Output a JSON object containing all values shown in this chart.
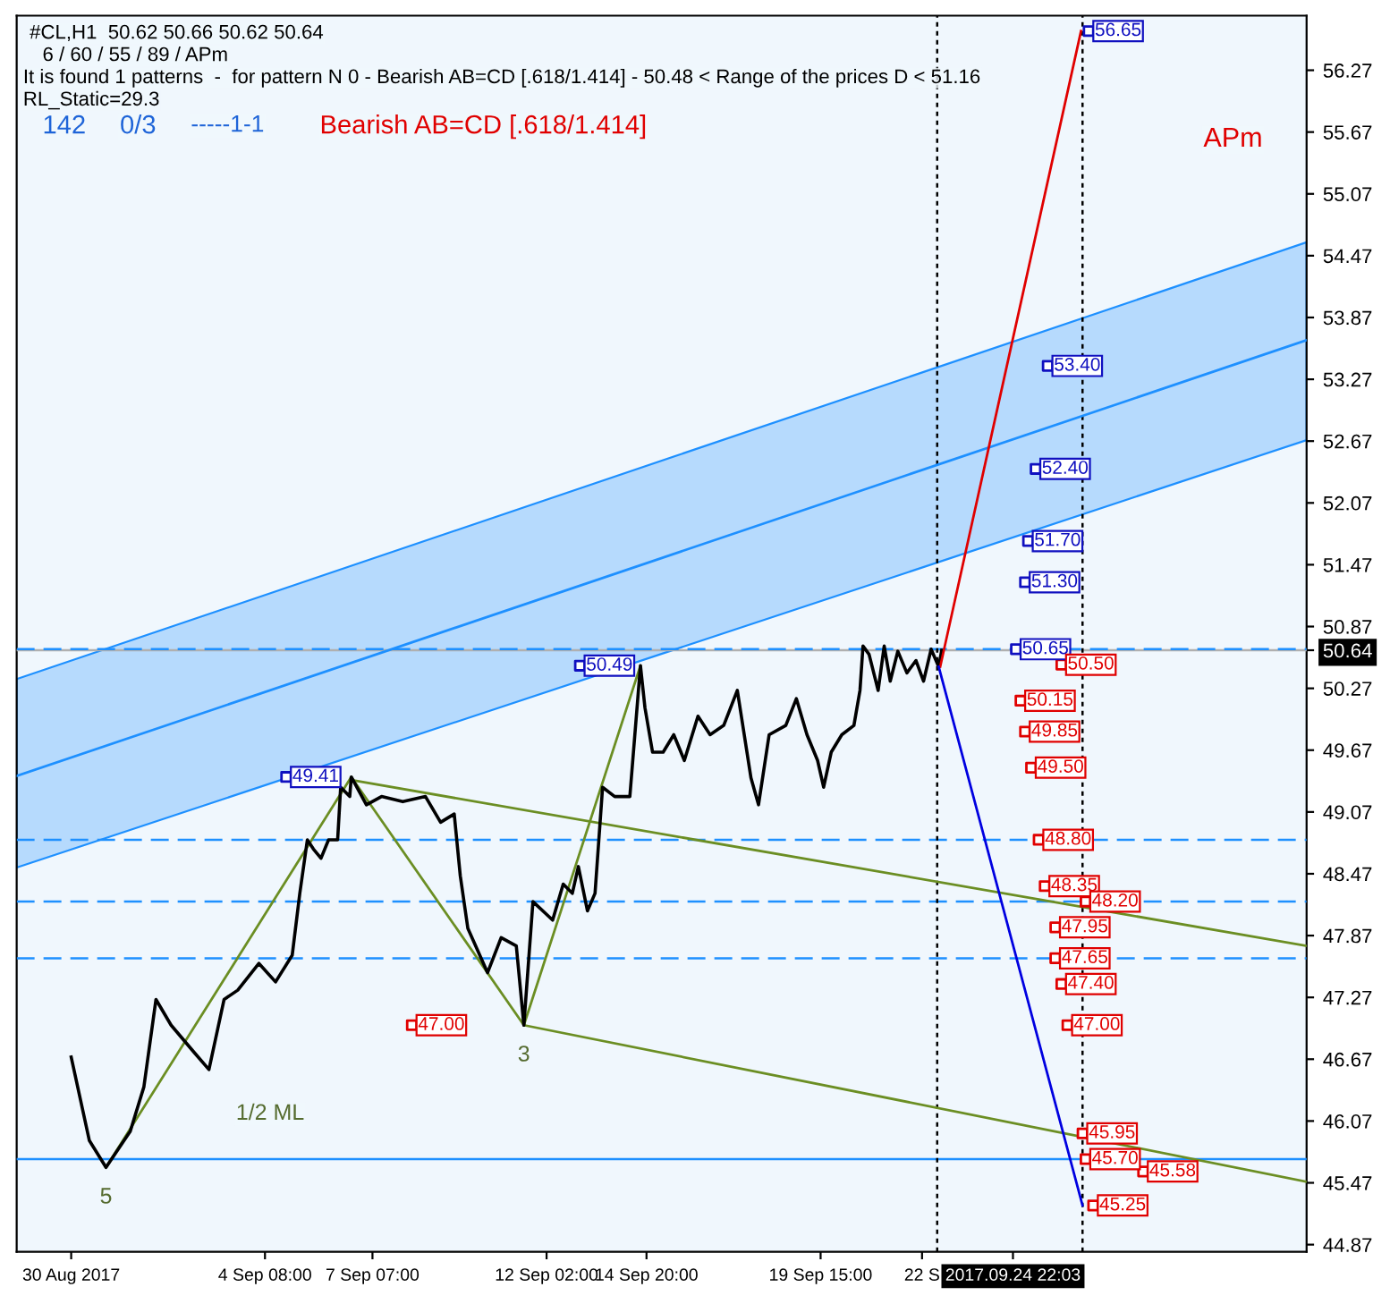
{
  "chart_data": {
    "type": "line",
    "annotations": [
      "#CL,H1  50.62 50.66 50.62 50.64",
      "6 / 60 / 55 / 89 / APm",
      "It is found 1 patterns  -  for pattern N 0 - Bearish AB=CD [.618/1.414] - 50.48 < Range of the prices D < 51.16",
      "RL_Static=29.3",
      "142",
      "0/3",
      "-----1-1",
      "Bearish AB=CD [.618/1.414]",
      "APm",
      "1/2 ML",
      {
        "text": "5",
        "x": "2017-08-30T23:00",
        "y": 45.62
      },
      {
        "text": "3",
        "x": "2017-09-11T11:00",
        "y": 47.0
      }
    ],
    "xlim": [
      "2017-08-28T12:00",
      "2017-10-03T00:00"
    ],
    "xticks": [
      {
        "value": "2017-08-30",
        "label": "30 Aug 2017"
      },
      {
        "value": "2017-09-04T08:00",
        "label": "4 Sep 08:00"
      },
      {
        "value": "2017-09-07T07:00",
        "label": "7 Sep 07:00"
      },
      {
        "value": "2017-09-12T02:00",
        "label": "12 Sep 02:00"
      },
      {
        "value": "2017-09-14T20:00",
        "label": "14 Sep 20:00"
      },
      {
        "value": "2017-09-19T15:00",
        "label": "19 Sep 15:00"
      },
      {
        "value": "2017-09-22T10:00",
        "label": "22 S"
      },
      {
        "value": "2017-09-24T22:03",
        "label": "2017.09.24 22:03"
      }
    ],
    "ylim": [
      44.8,
      56.8
    ],
    "yticks": [
      44.87,
      45.47,
      46.07,
      46.67,
      47.27,
      47.87,
      48.47,
      49.07,
      49.67,
      50.27,
      50.87,
      51.47,
      52.07,
      52.67,
      53.27,
      53.87,
      54.47,
      55.07,
      55.67,
      56.27,
      50.64
    ],
    "grid": false,
    "legend": false,
    "ref_lines": [
      {
        "axis": "y",
        "value": 50.64,
        "color": "#b0b0b0",
        "line_style": "solid"
      },
      {
        "axis": "y",
        "value": 50.65,
        "color": "#1e90ff",
        "line_style": "dashed"
      },
      {
        "axis": "y",
        "value": 48.8,
        "color": "#1e90ff",
        "line_style": "dashed"
      },
      {
        "axis": "y",
        "value": 48.2,
        "color": "#1e90ff",
        "line_style": "dashed"
      },
      {
        "axis": "y",
        "value": 47.65,
        "color": "#1e90ff",
        "line_style": "dashed"
      },
      {
        "axis": "y",
        "value": 45.7,
        "color": "#1e90ff",
        "line_style": "solid"
      },
      {
        "axis": "x",
        "value": "2017-09-22T20:00",
        "color": "#000000",
        "line_style": "dotted"
      },
      {
        "axis": "x",
        "value": "2017-09-26T20:00",
        "color": "#000000",
        "line_style": "dotted"
      }
    ],
    "series": [
      {
        "type": "line",
        "color": "#1e90ff",
        "line_style": "solid",
        "x": [
          "2017-08-28T12:00",
          "2017-10-03T00:00"
        ],
        "values": [
          49.42,
          53.65
        ],
        "lower": [
          48.53,
          52.68
        ],
        "upper": [
          50.36,
          54.6
        ]
      },
      {
        "type": "line",
        "color": "#6b8e23",
        "line_style": "solid",
        "x": [
          "2017-09-06T17:00",
          "2017-10-03T00:00"
        ],
        "values": [
          49.38,
          47.77
        ]
      },
      {
        "type": "line",
        "color": "#6b8e23",
        "line_style": "solid",
        "x": [
          "2017-09-11T11:00",
          "2017-10-03T00:00"
        ],
        "values": [
          47.0,
          45.48
        ]
      },
      {
        "type": "line",
        "color": "#6b8e23",
        "line_style": "solid",
        "x": [
          "2017-08-30T23:00",
          "2017-09-06T17:00",
          "2017-09-11T11:00",
          "2017-09-14T16:00"
        ],
        "values": [
          45.62,
          49.41,
          47.0,
          50.49
        ]
      },
      {
        "color": "#000000",
        "line_style": "solid",
        "x": [
          "2017-08-30T00:00",
          "2017-08-30T12:00",
          "2017-08-30T23:00",
          "2017-08-31T15:00",
          "2017-09-01T00:00",
          "2017-09-01T08:00",
          "2017-09-01T18:00",
          "2017-09-02T09:00",
          "2017-09-02T19:00",
          "2017-09-03T05:00",
          "2017-09-03T14:00",
          "2017-09-04T04:00",
          "2017-09-04T15:00",
          "2017-09-05T02:00",
          "2017-09-05T07:00",
          "2017-09-05T12:00",
          "2017-09-05T16:00",
          "2017-09-05T21:00",
          "2017-09-06T02:00",
          "2017-09-06T08:00",
          "2017-09-06T10:00",
          "2017-09-06T16:00",
          "2017-09-06T17:00",
          "2017-09-07T03:00",
          "2017-09-07T13:00",
          "2017-09-08T03:00",
          "2017-09-08T18:00",
          "2017-09-09T04:00",
          "2017-09-09T13:00",
          "2017-09-09T17:00",
          "2017-09-09T22:00",
          "2017-09-10T11:00",
          "2017-09-10T20:00",
          "2017-09-11T06:00",
          "2017-09-11T11:00",
          "2017-09-11T17:00",
          "2017-09-12T06:00",
          "2017-09-12T13:00",
          "2017-09-12T19:00",
          "2017-09-12T23:00",
          "2017-09-13T05:00",
          "2017-09-13T10:00",
          "2017-09-13T15:00",
          "2017-09-13T23:00",
          "2017-09-14T09:00",
          "2017-09-14T16:00",
          "2017-09-14T19:00",
          "2017-09-15T00:00",
          "2017-09-15T07:00",
          "2017-09-15T14:00",
          "2017-09-15T21:00",
          "2017-09-16T06:00",
          "2017-09-16T14:00",
          "2017-09-16T23:00",
          "2017-09-17T08:00",
          "2017-09-17T17:00",
          "2017-09-17T22:00",
          "2017-09-18T05:00",
          "2017-09-18T16:00",
          "2017-09-18T23:00",
          "2017-09-19T06:00",
          "2017-09-19T13:00",
          "2017-09-19T17:00",
          "2017-09-19T22:00",
          "2017-09-20T05:00",
          "2017-09-20T13:00",
          "2017-09-20T17:00",
          "2017-09-20T19:00",
          "2017-09-20T23:00",
          "2017-09-21T05:00",
          "2017-09-21T09:00",
          "2017-09-21T13:00",
          "2017-09-21T18:00",
          "2017-09-22T00:00",
          "2017-09-22T06:00",
          "2017-09-22T11:00",
          "2017-09-22T16:00",
          "2017-09-22T21:00",
          "2017-09-22T23:00"
        ],
        "values": [
          46.69,
          45.88,
          45.62,
          45.97,
          46.4,
          47.25,
          47.0,
          46.74,
          46.57,
          47.25,
          47.34,
          47.6,
          47.42,
          47.68,
          48.28,
          48.8,
          48.71,
          48.62,
          48.8,
          48.8,
          49.31,
          49.22,
          49.41,
          49.14,
          49.22,
          49.17,
          49.22,
          48.97,
          49.05,
          48.45,
          47.94,
          47.51,
          47.85,
          47.77,
          47.0,
          48.2,
          48.02,
          48.37,
          48.28,
          48.54,
          48.11,
          48.28,
          49.31,
          49.22,
          49.22,
          50.49,
          50.08,
          49.65,
          49.65,
          49.82,
          49.57,
          50.0,
          49.82,
          49.91,
          50.25,
          49.4,
          49.14,
          49.82,
          49.91,
          50.17,
          49.82,
          49.57,
          49.31,
          49.65,
          49.82,
          49.91,
          50.25,
          50.68,
          50.6,
          50.25,
          50.68,
          50.34,
          50.63,
          50.42,
          50.54,
          50.34,
          50.65,
          50.48,
          50.64
        ]
      },
      {
        "type": "line",
        "color": "#e00000",
        "line_style": "solid",
        "x": [
          "2017-09-22T22:00",
          "2017-09-26T19:00"
        ],
        "values": [
          50.48,
          56.65
        ]
      },
      {
        "type": "line",
        "color": "#0000e0",
        "line_style": "solid",
        "x": [
          "2017-09-22T21:00",
          "2017-09-26T20:00"
        ],
        "values": [
          50.48,
          45.25
        ]
      },
      {
        "type": "scatter",
        "color": "#1010c0",
        "marker": "square",
        "x": [
          "2017-09-27T00:00",
          "2017-09-25T21:00",
          "2017-09-25T13:00",
          "2017-09-25T08:00",
          "2017-09-25T06:00",
          "2017-09-25T00:00",
          "2017-09-13T00:00",
          "2017-09-04T22:00"
        ],
        "values": [
          56.65,
          53.4,
          52.4,
          51.7,
          51.3,
          50.65,
          50.49,
          49.41
        ],
        "value_labels": [
          "56.65",
          "53.40",
          "52.40",
          "51.70",
          "51.30",
          "50.65",
          "50.49",
          "49.41"
        ]
      },
      {
        "type": "scatter",
        "color": "#e00000",
        "marker": "square",
        "x": [
          "2017-09-26T06:00",
          "2017-09-25T03:00",
          "2017-09-25T06:00",
          "2017-09-25T10:00",
          "2017-09-25T15:00",
          "2017-09-25T19:00",
          "2017-09-26T22:00",
          "2017-09-26T02:00",
          "2017-09-26T02:00",
          "2017-09-26T06:00",
          "2017-09-26T10:00",
          "2017-09-26T20:00",
          "2017-09-26T22:00",
          "2017-09-28T12:00",
          "2017-09-27T03:00",
          "2017-09-08T09:00"
        ],
        "values": [
          50.5,
          50.15,
          49.85,
          49.5,
          48.8,
          48.35,
          48.2,
          47.95,
          47.65,
          47.4,
          47.0,
          45.95,
          45.7,
          45.58,
          45.25,
          47.0
        ],
        "value_labels": [
          "50.50",
          "50.15",
          "49.85",
          "49.50",
          "48.80",
          "48.35",
          "48.20",
          "47.95",
          "47.65",
          "47.40",
          "47.00",
          "45.95",
          "45.70",
          "45.58",
          "45.25",
          "47.00"
        ]
      }
    ]
  }
}
